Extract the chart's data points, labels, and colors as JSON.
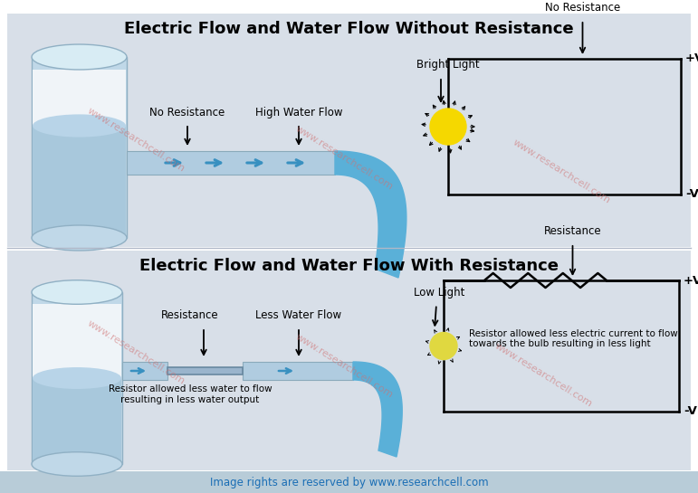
{
  "title_top": "Electric Flow and Water Flow Without Resistance",
  "title_bottom": "Electric Flow and Water Flow With Resistance",
  "bg_panel": "#d8dfe8",
  "bg_white": "#ffffff",
  "watermark": "www.researchcell.com",
  "footer": "Image rights are reserved by www.researchcell.com",
  "footer_color": "#1a6eb5",
  "footer_bg": "#b8ccd8",
  "watermark_color": "#d07070",
  "title_fontsize": 13,
  "label_fontsize": 8.5,
  "water_blue": "#5ab0d8",
  "water_blue_dark": "#3890c0",
  "pipe_fill": "#b0cce0",
  "pipe_edge": "#8aaabb",
  "tank_body": "#c0d8e8",
  "tank_edge": "#90b0c4",
  "tank_water": "#a8c8dc",
  "circuit_lw": 1.8
}
